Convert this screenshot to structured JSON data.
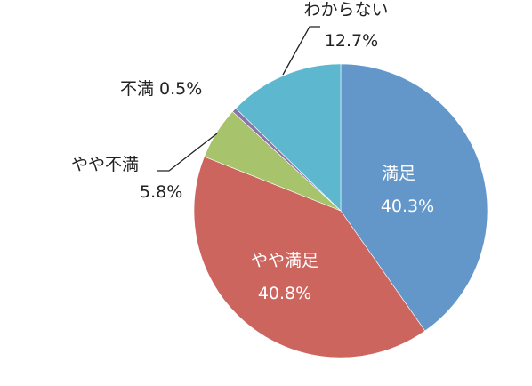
{
  "chart_data": {
    "type": "pie",
    "title": "",
    "start_angle_deg": 0,
    "direction": "clockwise",
    "legend": "none",
    "slices": [
      {
        "label": "満足",
        "value": 40.3,
        "value_text": "40.3%",
        "color": "#6497c9",
        "label_position": "inside"
      },
      {
        "label": "やや満足",
        "value": 40.8,
        "value_text": "40.8%",
        "color": "#cd655f",
        "label_position": "inside"
      },
      {
        "label": "やや不満",
        "value": 5.8,
        "value_text": "5.8%",
        "color": "#a7c36b",
        "label_position": "outside"
      },
      {
        "label": "不満",
        "value": 0.5,
        "value_text": "0.5%",
        "color": "#8a74a8",
        "label_position": "outside"
      },
      {
        "label": "わからない",
        "value": 12.7,
        "value_text": "12.7%",
        "color": "#5db8cf",
        "label_position": "outside"
      }
    ],
    "text_color_inside": "#ffffff",
    "text_color_outside": "#222222",
    "leader_line_color": "#222222"
  }
}
